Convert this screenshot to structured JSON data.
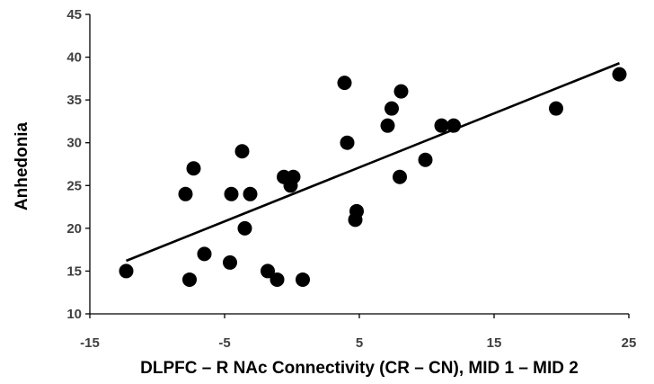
{
  "chart_data": {
    "type": "scatter",
    "title": "",
    "xlabel": "DLPFC – R NAc Connectivity (CR – CN), MID 1 – MID 2",
    "ylabel": "Anhedonia",
    "xlim": [
      -15,
      25
    ],
    "ylim": [
      10,
      45
    ],
    "xticks": [
      -15,
      -5,
      5,
      15,
      25
    ],
    "yticks": [
      10,
      15,
      20,
      25,
      30,
      35,
      40,
      45
    ],
    "grid": false,
    "legend": "none",
    "marker_color": "#000000",
    "points": [
      {
        "x": -12.3,
        "y": 15
      },
      {
        "x": -7.9,
        "y": 24
      },
      {
        "x": -7.6,
        "y": 14
      },
      {
        "x": -7.3,
        "y": 27
      },
      {
        "x": -6.5,
        "y": 17
      },
      {
        "x": -4.6,
        "y": 16
      },
      {
        "x": -4.5,
        "y": 24
      },
      {
        "x": -3.7,
        "y": 29
      },
      {
        "x": -3.5,
        "y": 20
      },
      {
        "x": -3.1,
        "y": 24
      },
      {
        "x": -1.8,
        "y": 15
      },
      {
        "x": -1.1,
        "y": 14
      },
      {
        "x": -0.6,
        "y": 26
      },
      {
        "x": -0.1,
        "y": 25
      },
      {
        "x": 0.1,
        "y": 26
      },
      {
        "x": 0.8,
        "y": 14
      },
      {
        "x": 3.9,
        "y": 37
      },
      {
        "x": 4.1,
        "y": 30
      },
      {
        "x": 4.7,
        "y": 21
      },
      {
        "x": 4.8,
        "y": 22
      },
      {
        "x": 7.1,
        "y": 32
      },
      {
        "x": 7.4,
        "y": 34
      },
      {
        "x": 8.0,
        "y": 26
      },
      {
        "x": 8.1,
        "y": 36
      },
      {
        "x": 9.9,
        "y": 28
      },
      {
        "x": 11.1,
        "y": 32
      },
      {
        "x": 12.0,
        "y": 32
      },
      {
        "x": 19.6,
        "y": 34
      },
      {
        "x": 24.3,
        "y": 38
      }
    ],
    "trendline": {
      "type": "linear",
      "x": [
        -12.3,
        24.3
      ],
      "y": [
        16.2,
        39.3
      ]
    }
  }
}
